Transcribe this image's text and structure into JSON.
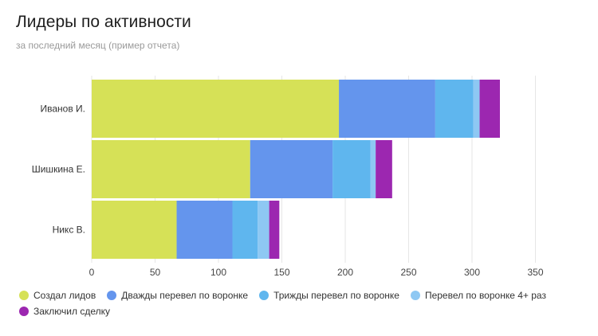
{
  "chart_data": {
    "type": "bar",
    "orientation": "horizontal",
    "stacked": true,
    "title": "Лидеры по активности",
    "subtitle": "за последний месяц (пример отчета)",
    "categories": [
      "Иванов И.",
      "Шишкина Е.",
      "Никс В."
    ],
    "series": [
      {
        "name": "Создал лидов",
        "color": "#d6e157",
        "values": [
          195,
          125,
          67
        ]
      },
      {
        "name": "Дважды перевел по воронке",
        "color": "#6495ed",
        "values": [
          76,
          65,
          44
        ]
      },
      {
        "name": "Трижды перевел по воронке",
        "color": "#5fb6ee",
        "values": [
          30,
          30,
          20
        ]
      },
      {
        "name": "Перевел по воронке 4+ раз",
        "color": "#8ec8f3",
        "values": [
          5,
          4,
          9
        ]
      },
      {
        "name": "Заключил сделку",
        "color": "#9c27b0",
        "values": [
          16,
          13,
          8
        ]
      }
    ],
    "xlim": [
      0,
      350
    ],
    "xticks": [
      0,
      50,
      100,
      150,
      200,
      250,
      300,
      350
    ],
    "grid": true,
    "legend_position": "bottom"
  }
}
